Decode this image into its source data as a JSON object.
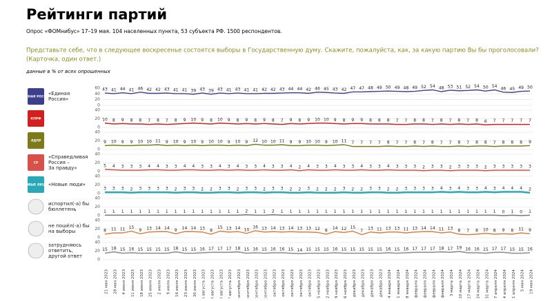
{
  "chart_data": {
    "type": "line",
    "title": "Рейтинги партий",
    "subtitle": "Опрос «ФОМнибус» 17–19 мая. 104 населенных пункта, 53 субъекта РФ. 1500 респондентов.",
    "question": [
      "Представьте себе, что в следующее воскресенье состоятся выборы в Государственную думу. Скажите, пожалуйста, как, за какую партию Вы бы проголосовали?",
      "(Карточка, один ответ.)"
    ],
    "note": "данные в % от всех опрошенных",
    "categories": [
      "21 мая 2023",
      "28 мая 2023",
      "4 июня 2023",
      "11 июня 2023",
      "18 июня 2023",
      "25 июня 2023",
      "2 июля 2023",
      "9 июля 2023",
      "16 июля 2023",
      "23 июля 2023",
      "30 июля 2023",
      "6 августа 2023",
      "13 августа 2023",
      "20 августа 2023",
      "27 августа 2023",
      "3 сентября 2023",
      "10 сентября 2023",
      "17 сентября 2023",
      "24 сентября 2023",
      "1 октября 2023",
      "8 октября 2023",
      "15 октября 2023",
      "22 октября 2023",
      "29 октября 2023",
      "5 ноября 2023",
      "12 ноября 2023",
      "19 ноября 2023",
      "26 ноября 2023",
      "3 декабря 2023",
      "10 декабря 2023",
      "17 декабря 2023",
      "24 декабря 2023",
      "14 января 2024",
      "21 января 2024",
      "28 января 2024",
      "4 февраля 2024",
      "11 февраля 2024",
      "18 февраля 2024",
      "25 февраля 2024",
      "3 марта 2024",
      "10 марта 2024",
      "17 марта 2024",
      "24 марта 2024",
      "31 марта 2024",
      "7 апреля 2024",
      "14 апреля 2024",
      "21 апреля 2024",
      "5 мая 2024",
      "19 мая 2024"
    ],
    "series": [
      {
        "label": [
          "«Единая",
          "Россия»"
        ],
        "icon": "ЕДИНАЯ РОССИЯ",
        "color": "#3d3f8c",
        "ylim": [
          0,
          60
        ],
        "yticks": [
          0,
          20,
          40,
          60
        ],
        "values": [
          43,
          41,
          44,
          41,
          46,
          42,
          42,
          43,
          41,
          41,
          39,
          43,
          39,
          43,
          41,
          43,
          41,
          41,
          42,
          42,
          43,
          44,
          44,
          42,
          46,
          45,
          43,
          42,
          47,
          47,
          48,
          49,
          50,
          49,
          48,
          49,
          52,
          54,
          48,
          53,
          51,
          52,
          54,
          50,
          54,
          46,
          45,
          49,
          50
        ]
      },
      {
        "icon": "КПРФ",
        "color": "#d21f1f",
        "ylim": [
          0,
          40
        ],
        "yticks": [
          0,
          20,
          40
        ],
        "values": [
          10,
          8,
          9,
          8,
          8,
          7,
          8,
          7,
          8,
          9,
          10,
          9,
          8,
          10,
          9,
          8,
          9,
          8,
          9,
          8,
          7,
          9,
          8,
          9,
          10,
          10,
          9,
          8,
          9,
          9,
          8,
          8,
          8,
          7,
          7,
          8,
          8,
          7,
          8,
          7,
          8,
          7,
          8,
          6,
          7,
          7,
          7,
          7,
          7
        ]
      },
      {
        "icon": "ЛДПР",
        "color": "#7c7a1a",
        "ylim": [
          0,
          40
        ],
        "yticks": [
          0,
          20,
          40
        ],
        "values": [
          9,
          10,
          9,
          9,
          10,
          10,
          11,
          9,
          10,
          9,
          10,
          9,
          10,
          10,
          9,
          10,
          9,
          12,
          10,
          10,
          11,
          9,
          9,
          10,
          10,
          9,
          10,
          11,
          7,
          7,
          7,
          7,
          8,
          7,
          7,
          8,
          7,
          8,
          7,
          7,
          8,
          7,
          8,
          8,
          7,
          8,
          8,
          8,
          9
        ]
      },
      {
        "label": [
          "«Справедливая",
          "Россия –",
          "За правду»"
        ],
        "icon": "СР",
        "color": "#d8504a",
        "ylim": [
          0,
          40
        ],
        "yticks": [
          0,
          20,
          40
        ],
        "values": [
          5,
          4,
          3,
          3,
          3,
          4,
          4,
          3,
          3,
          4,
          4,
          3,
          3,
          4,
          3,
          4,
          3,
          3,
          4,
          3,
          3,
          4,
          2,
          4,
          3,
          3,
          4,
          3,
          3,
          4,
          3,
          3,
          4,
          3,
          3,
          3,
          2,
          3,
          3,
          2,
          3,
          3,
          3,
          2,
          3,
          3,
          3,
          3,
          3
        ]
      },
      {
        "label": [
          "«Новые люди»"
        ],
        "icon": "НОВЫЕ ЛЮДИ",
        "color": "#2aa8b8",
        "ylim": [
          0,
          40
        ],
        "yticks": [
          0,
          20,
          40
        ],
        "values": [
          3,
          3,
          3,
          2,
          3,
          3,
          3,
          3,
          2,
          3,
          3,
          2,
          2,
          3,
          3,
          2,
          3,
          3,
          2,
          3,
          3,
          2,
          2,
          3,
          2,
          2,
          2,
          3,
          2,
          2,
          3,
          3,
          2,
          2,
          3,
          3,
          3,
          3,
          4,
          3,
          4,
          3,
          3,
          4,
          3,
          4,
          4,
          4,
          2
        ]
      },
      {
        "label": [
          "испортил(-а) бы",
          "бюллетень"
        ],
        "color": "#777777",
        "ylim": [
          0,
          40
        ],
        "yticks": [
          0,
          20,
          40
        ],
        "values": [
          1,
          1,
          1,
          1,
          1,
          1,
          1,
          1,
          1,
          1,
          1,
          1,
          1,
          1,
          1,
          1,
          2,
          1,
          1,
          2,
          1,
          1,
          1,
          1,
          1,
          1,
          1,
          1,
          1,
          1,
          1,
          1,
          1,
          1,
          1,
          1,
          1,
          1,
          1,
          1,
          1,
          1,
          1,
          1,
          1,
          0,
          1,
          0,
          1
        ]
      },
      {
        "label": [
          "не пошёл(-а) бы",
          "на выборы"
        ],
        "color": "#e07b39",
        "ylim": [
          0,
          40
        ],
        "yticks": [
          0,
          20,
          40
        ],
        "values": [
          8,
          11,
          11,
          15,
          9,
          13,
          14,
          14,
          9,
          14,
          14,
          13,
          8,
          15,
          13,
          14,
          10,
          16,
          13,
          14,
          13,
          14,
          13,
          13,
          12,
          8,
          14,
          12,
          15,
          7,
          13,
          11,
          13,
          13,
          11,
          13,
          14,
          14,
          11,
          13,
          8,
          7,
          8,
          10,
          8,
          9,
          8,
          11,
          9
        ]
      },
      {
        "label": [
          "затрудняюсь",
          "ответить,",
          "другой ответ"
        ],
        "color": "#8a8a8a",
        "ylim": [
          0,
          40
        ],
        "yticks": [
          0,
          20,
          40
        ],
        "values": [
          15,
          18,
          15,
          16,
          15,
          15,
          15,
          15,
          18,
          15,
          15,
          16,
          17,
          17,
          17,
          18,
          15,
          16,
          15,
          16,
          16,
          15,
          14,
          15,
          15,
          15,
          16,
          15,
          15,
          15,
          15,
          15,
          16,
          15,
          16,
          17,
          17,
          17,
          18,
          17,
          19,
          16,
          16,
          15,
          17,
          17,
          15,
          15,
          16
        ]
      }
    ]
  }
}
